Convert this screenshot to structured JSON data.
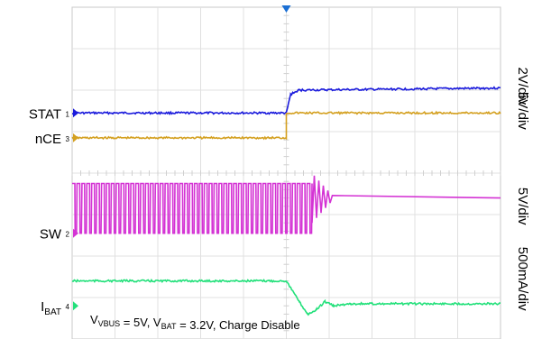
{
  "chart_data": {
    "type": "line",
    "title": "",
    "annotation": {
      "parts": [
        {
          "text": "V",
          "sub": "VBUS"
        },
        {
          "text": " = 5V, V",
          "sub": "BAT"
        },
        {
          "text": " = 3.2V, Charge Disable",
          "sub": ""
        }
      ]
    },
    "grid": true,
    "time_divisions": 10,
    "vertical_divisions": 8,
    "trigger_division": 5,
    "channels": [
      {
        "id": "stat",
        "label": "STAT",
        "label_sub": "",
        "marker": "1",
        "scale": "2V/div",
        "color": "#1a1adc",
        "ref_div": 5.45,
        "levels_div": [
          0,
          0.6
        ],
        "segments_div": [
          [
            0,
            0
          ],
          [
            5.0,
            0
          ],
          [
            5.1,
            0.45
          ],
          [
            5.3,
            0.55
          ],
          [
            10,
            0.6
          ]
        ]
      },
      {
        "id": "nce",
        "label": "nCE",
        "label_sub": "",
        "marker": "3",
        "scale": "5V/div",
        "color": "#d4a020",
        "ref_div": 4.85,
        "levels_div": [
          0,
          0.6
        ],
        "segments_div": [
          [
            0,
            0
          ],
          [
            5.0,
            0
          ],
          [
            5.0,
            0.6
          ],
          [
            10,
            0.6
          ]
        ]
      },
      {
        "id": "sw",
        "label": "SW",
        "label_sub": "",
        "marker": "2",
        "scale": "5V/div",
        "color": "#d433d4",
        "ref_div": 2.55,
        "high_div": 1.2,
        "low_div": 0,
        "switching_until_div": 5.6,
        "settled_div": 0.85,
        "pulse_count": 49
      },
      {
        "id": "ibat",
        "label": "I",
        "label_sub": "BAT",
        "marker": "4",
        "scale": "500mA/div",
        "color": "#22e07a",
        "ref_div": 0.8,
        "segments_div": [
          [
            0,
            0.6
          ],
          [
            5.0,
            0.6
          ],
          [
            5.3,
            0.1
          ],
          [
            5.5,
            -0.2
          ],
          [
            5.7,
            -0.1
          ],
          [
            5.9,
            0.1
          ],
          [
            6.1,
            0.0
          ],
          [
            6.5,
            0.05
          ],
          [
            10,
            0.05
          ]
        ]
      }
    ]
  }
}
